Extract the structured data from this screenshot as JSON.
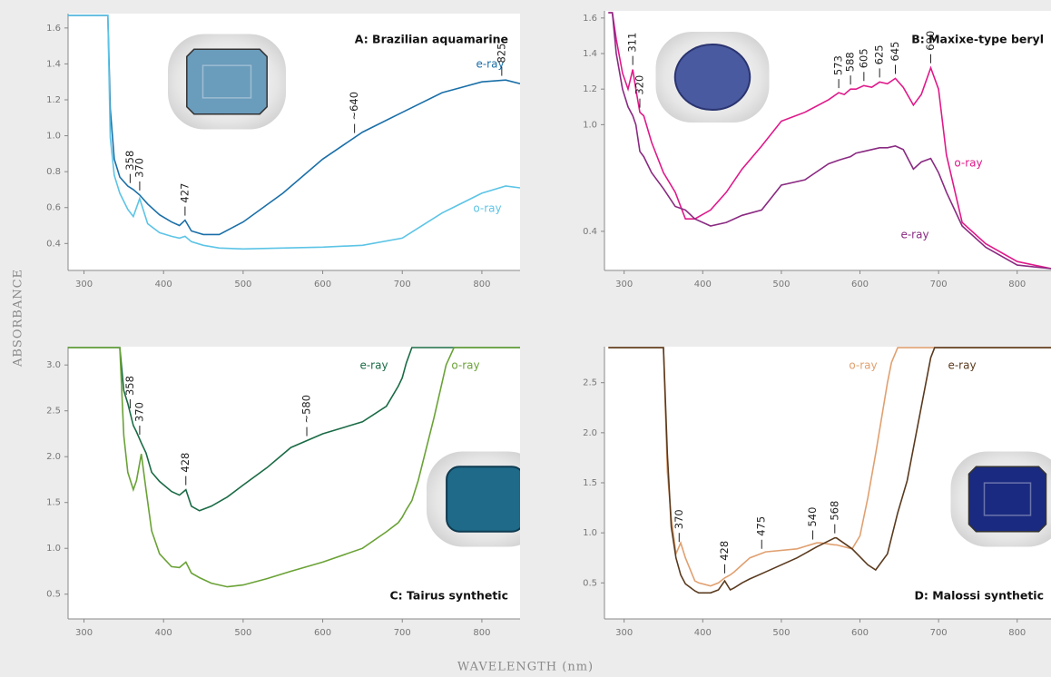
{
  "ylabel": "ABSORBANCE",
  "xlabel": "WAVELENGTH (nm)",
  "chart_data": [
    {
      "type": "line",
      "title": "A: Brazilian aquamarine",
      "x": [
        280,
        330,
        333,
        338,
        345,
        355,
        362,
        370,
        380,
        395,
        410,
        420,
        427,
        435,
        450,
        470,
        500,
        550,
        600,
        650,
        700,
        750,
        800,
        830,
        848
      ],
      "series": [
        {
          "name": "e-ray",
          "color": "#1a6fa8",
          "values": [
            1.67,
            1.67,
            1.15,
            0.87,
            0.77,
            0.72,
            0.7,
            0.67,
            0.62,
            0.56,
            0.52,
            0.5,
            0.53,
            0.47,
            0.45,
            0.45,
            0.52,
            0.68,
            0.87,
            1.02,
            1.13,
            1.24,
            1.3,
            1.31,
            1.29
          ]
        },
        {
          "name": "o-ray",
          "color": "#5cc4e6",
          "values": [
            1.67,
            1.67,
            0.99,
            0.78,
            0.68,
            0.59,
            0.55,
            0.65,
            0.51,
            0.46,
            0.44,
            0.43,
            0.44,
            0.41,
            0.39,
            0.375,
            0.37,
            0.375,
            0.38,
            0.39,
            0.43,
            0.57,
            0.68,
            0.72,
            0.71
          ]
        }
      ],
      "xlim": [
        280,
        848
      ],
      "xticks": [
        300,
        400,
        500,
        600,
        700,
        800
      ],
      "ylim": [
        0.25,
        1.68
      ],
      "yticks": [
        0.4,
        0.6,
        0.8,
        {
          "value": 1,
          "label": "1.0"
        },
        1.2,
        1.4,
        1.6
      ],
      "annotations": [
        {
          "value": 358,
          "label": "358"
        },
        {
          "value": 370,
          "label": "370"
        },
        {
          "value": 427,
          "label": "427"
        },
        {
          "value": 640,
          "label": "~640"
        },
        {
          "value": 825,
          "label": "825"
        }
      ]
    },
    {
      "type": "line",
      "title": "B: Maxixe-type beryl",
      "x": [
        280,
        285,
        290,
        298,
        305,
        311,
        315,
        320,
        325,
        335,
        350,
        365,
        378,
        390,
        410,
        430,
        450,
        475,
        500,
        530,
        560,
        573,
        580,
        588,
        595,
        605,
        615,
        625,
        635,
        645,
        655,
        668,
        678,
        690,
        700,
        710,
        730,
        760,
        800,
        843
      ],
      "series": [
        {
          "name": "o-ray",
          "color": "#e0198a",
          "values": [
            1.63,
            1.63,
            1.48,
            1.29,
            1.2,
            1.31,
            1.2,
            1.07,
            1.05,
            0.9,
            0.73,
            0.62,
            0.47,
            0.47,
            0.52,
            0.62,
            0.75,
            0.88,
            1.02,
            1.07,
            1.14,
            1.18,
            1.17,
            1.2,
            1.2,
            1.22,
            1.21,
            1.24,
            1.23,
            1.26,
            1.21,
            1.11,
            1.17,
            1.32,
            1.2,
            0.83,
            0.45,
            0.33,
            0.23,
            0.19
          ]
        },
        {
          "name": "e-ray",
          "color": "#8a2a82",
          "values": [
            1.63,
            1.63,
            1.4,
            1.2,
            1.1,
            1.05,
            1.0,
            0.85,
            0.82,
            0.73,
            0.64,
            0.54,
            0.52,
            0.47,
            0.43,
            0.45,
            0.49,
            0.52,
            0.66,
            0.69,
            0.78,
            0.8,
            0.81,
            0.82,
            0.84,
            0.85,
            0.86,
            0.87,
            0.87,
            0.88,
            0.86,
            0.75,
            0.79,
            0.81,
            0.73,
            0.62,
            0.43,
            0.31,
            0.21,
            0.19
          ]
        }
      ],
      "xlim": [
        275,
        843
      ],
      "xticks": [
        300,
        400,
        500,
        600,
        700,
        800
      ],
      "ylim": [
        0.18,
        1.64
      ],
      "yticks": [
        0.4,
        {
          "value": 1,
          "label": "1.0"
        },
        1.2,
        1.4,
        1.6
      ],
      "annotations": [
        {
          "value": 311,
          "label": "311"
        },
        {
          "value": 320,
          "label": "320"
        },
        {
          "value": 573,
          "label": "573"
        },
        {
          "value": 588,
          "label": "588"
        },
        {
          "value": 605,
          "label": "605"
        },
        {
          "value": 625,
          "label": "625"
        },
        {
          "value": 645,
          "label": "645"
        },
        {
          "value": 690,
          "label": "690"
        }
      ]
    },
    {
      "type": "line",
      "title": "C: Tairus synthetic",
      "x": [
        280,
        345,
        350,
        355,
        362,
        366,
        372,
        378,
        385,
        395,
        410,
        420,
        428,
        435,
        445,
        460,
        480,
        500,
        530,
        560,
        600,
        650,
        680,
        695,
        700,
        705,
        712,
        720,
        740,
        755,
        765,
        848
      ],
      "series": [
        {
          "name": "e-ray",
          "color": "#1a6b45",
          "values": [
            3.19,
            3.19,
            2.72,
            2.58,
            2.34,
            2.27,
            2.15,
            2.04,
            1.83,
            1.73,
            1.62,
            1.58,
            1.64,
            1.46,
            1.41,
            1.46,
            1.56,
            1.69,
            1.88,
            2.1,
            2.25,
            2.38,
            2.55,
            2.77,
            2.86,
            3.02,
            3.19,
            3.19,
            3.19,
            3.19,
            3.19,
            3.19
          ]
        },
        {
          "name": "o-ray",
          "color": "#6aa236",
          "values": [
            3.19,
            3.19,
            2.23,
            1.83,
            1.64,
            1.74,
            2.03,
            1.64,
            1.19,
            0.94,
            0.8,
            0.79,
            0.85,
            0.73,
            0.68,
            0.62,
            0.58,
            0.6,
            0.67,
            0.75,
            0.85,
            1.0,
            1.18,
            1.28,
            1.34,
            1.42,
            1.52,
            1.74,
            2.43,
            3.0,
            3.19,
            3.19
          ]
        }
      ],
      "xlim": [
        280,
        848
      ],
      "xticks": [
        300,
        400,
        500,
        600,
        700,
        800
      ],
      "ylim": [
        0.23,
        3.2
      ],
      "yticks": [
        0.5,
        {
          "value": 1,
          "label": "1.0"
        },
        1.5,
        {
          "value": 2,
          "label": "2.0"
        },
        2.5,
        {
          "value": 3,
          "label": "3.0"
        }
      ],
      "annotations": [
        {
          "value": 358,
          "label": "358"
        },
        {
          "value": 370,
          "label": "370"
        },
        {
          "value": 428,
          "label": "428"
        },
        {
          "value": 580,
          "label": "~580"
        }
      ]
    },
    {
      "type": "line",
      "title": "D: Malossi synthetic",
      "x": [
        280,
        350,
        355,
        360,
        366,
        372,
        378,
        390,
        395,
        410,
        420,
        428,
        435,
        440,
        450,
        460,
        480,
        520,
        545,
        550,
        568,
        570,
        590,
        600,
        610,
        620,
        635,
        640,
        648,
        660,
        680,
        690,
        695,
        848
      ],
      "series": [
        {
          "name": "o-ray",
          "color": "#e0a070",
          "values": [
            2.85,
            2.85,
            1.61,
            1.15,
            0.79,
            0.9,
            0.75,
            0.52,
            0.5,
            0.47,
            0.5,
            0.55,
            0.58,
            0.61,
            0.68,
            0.75,
            0.81,
            0.84,
            0.9,
            0.9,
            0.88,
            0.88,
            0.84,
            0.97,
            1.35,
            1.79,
            2.5,
            2.7,
            2.85,
            2.85,
            2.85,
            2.85,
            2.85,
            2.85
          ]
        },
        {
          "name": "e-ray",
          "color": "#5a3a1e",
          "values": [
            2.85,
            2.85,
            1.79,
            1.06,
            0.75,
            0.58,
            0.49,
            0.42,
            0.4,
            0.4,
            0.43,
            0.52,
            0.43,
            0.45,
            0.5,
            0.54,
            0.61,
            0.75,
            0.86,
            0.88,
            0.95,
            0.95,
            0.84,
            0.76,
            0.68,
            0.63,
            0.79,
            0.95,
            1.2,
            1.52,
            2.34,
            2.75,
            2.85,
            2.85
          ]
        }
      ],
      "xlim": [
        275,
        843
      ],
      "xticks": [
        300,
        400,
        500,
        600,
        700,
        800
      ],
      "ylim": [
        0.14,
        2.86
      ],
      "yticks": [
        0.5,
        {
          "value": 1,
          "label": "1.0"
        },
        1.5,
        {
          "value": 2,
          "label": "2.0"
        },
        2.5
      ],
      "annotations": [
        {
          "value": 370,
          "label": "370"
        },
        {
          "value": 428,
          "label": "428"
        },
        {
          "value": 475,
          "label": "475"
        },
        {
          "value": 540,
          "label": "540"
        },
        {
          "value": 568,
          "label": "568"
        }
      ]
    }
  ]
}
